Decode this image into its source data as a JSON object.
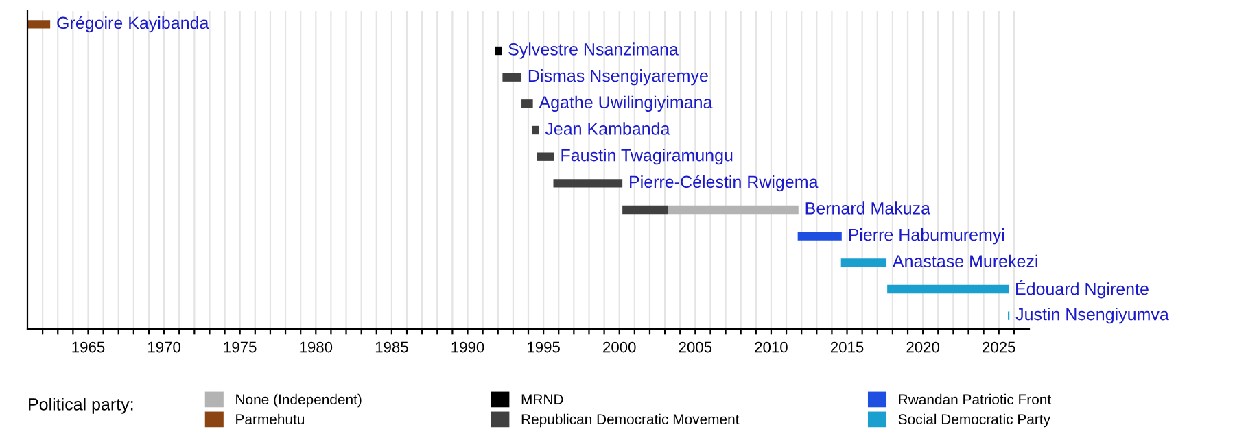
{
  "chart_data": {
    "type": "bar",
    "orientation": "horizontal",
    "legend_title": "Political party:",
    "categories": [
      "Grégoire Kayibanda",
      "Sylvestre Nsanzimana",
      "Dismas Nsengiyaremye",
      "Agathe Uwilingiyimana",
      "Jean Kambanda",
      "Faustin Twagiramungu",
      "Pierre-Célestin Rwigema",
      "Bernard Makuza",
      "Pierre Habumuremyi",
      "Anastase Murekezi",
      "Édouard Ngirente",
      "Justin Nsengiyumva"
    ],
    "series": [
      {
        "name": "None (Independent)",
        "color": "#b3b3b3",
        "values": [
          null,
          null,
          null,
          null,
          null,
          null,
          null,
          8.6,
          null,
          null,
          null,
          null
        ],
        "base": [
          null,
          null,
          null,
          null,
          null,
          null,
          null,
          2003.2,
          null,
          null,
          null,
          null
        ]
      },
      {
        "name": "Parmehutu",
        "color": "#8b4513",
        "values": [
          1.5,
          null,
          null,
          null,
          null,
          null,
          null,
          null,
          null,
          null,
          null,
          null
        ],
        "base": [
          1961.0,
          null,
          null,
          null,
          null,
          null,
          null,
          null,
          null,
          null,
          null,
          null
        ]
      },
      {
        "name": "MRND",
        "color": "#000000",
        "values": [
          null,
          0.45,
          null,
          null,
          null,
          null,
          null,
          null,
          null,
          null,
          null,
          null
        ],
        "base": [
          null,
          1991.8,
          null,
          null,
          null,
          null,
          null,
          null,
          null,
          null,
          null,
          null
        ]
      },
      {
        "name": "Republican Democratic Movement",
        "color": "#404040",
        "values": [
          null,
          null,
          1.25,
          0.75,
          0.45,
          1.15,
          4.55,
          3.0,
          null,
          null,
          null,
          null
        ],
        "base": [
          null,
          null,
          1992.3,
          1993.55,
          1994.25,
          1994.55,
          1995.65,
          2000.2,
          null,
          null,
          null,
          null
        ]
      },
      {
        "name": "Rwandan Patriotic Front",
        "color": "#1e4fe0",
        "values": [
          null,
          null,
          null,
          null,
          null,
          null,
          null,
          null,
          2.9,
          null,
          null,
          null
        ],
        "base": [
          null,
          null,
          null,
          null,
          null,
          null,
          null,
          null,
          2011.75,
          null,
          null,
          null
        ]
      },
      {
        "name": "Social Democratic Party",
        "color": "#1a9fcf",
        "values": [
          null,
          null,
          null,
          null,
          null,
          null,
          null,
          null,
          null,
          3.0,
          8.0,
          0.1
        ],
        "base": [
          null,
          null,
          null,
          null,
          null,
          null,
          null,
          null,
          null,
          2014.6,
          2017.65,
          2025.6
        ]
      }
    ],
    "xlim": [
      1961,
      2027
    ],
    "xticks": [
      {
        "value": 1962,
        "label": null
      },
      {
        "value": 1963,
        "label": null
      },
      {
        "value": 1964,
        "label": null
      },
      1965,
      {
        "value": 1966,
        "label": null
      },
      {
        "value": 1967,
        "label": null
      },
      {
        "value": 1968,
        "label": null
      },
      {
        "value": 1969,
        "label": null
      },
      1970,
      {
        "value": 1971,
        "label": null
      },
      {
        "value": 1972,
        "label": null
      },
      {
        "value": 1973,
        "label": null
      },
      {
        "value": 1974,
        "label": null
      },
      1975,
      {
        "value": 1976,
        "label": null
      },
      {
        "value": 1977,
        "label": null
      },
      {
        "value": 1978,
        "label": null
      },
      {
        "value": 1979,
        "label": null
      },
      1980,
      {
        "value": 1981,
        "label": null
      },
      {
        "value": 1982,
        "label": null
      },
      {
        "value": 1983,
        "label": null
      },
      {
        "value": 1984,
        "label": null
      },
      1985,
      {
        "value": 1986,
        "label": null
      },
      {
        "value": 1987,
        "label": null
      },
      {
        "value": 1988,
        "label": null
      },
      {
        "value": 1989,
        "label": null
      },
      1990,
      {
        "value": 1991,
        "label": null
      },
      {
        "value": 1992,
        "label": null
      },
      {
        "value": 1993,
        "label": null
      },
      {
        "value": 1994,
        "label": null
      },
      1995,
      {
        "value": 1996,
        "label": null
      },
      {
        "value": 1997,
        "label": null
      },
      {
        "value": 1998,
        "label": null
      },
      {
        "value": 1999,
        "label": null
      },
      2000,
      {
        "value": 2001,
        "label": null
      },
      {
        "value": 2002,
        "label": null
      },
      {
        "value": 2003,
        "label": null
      },
      {
        "value": 2004,
        "label": null
      },
      2005,
      {
        "value": 2006,
        "label": null
      },
      {
        "value": 2007,
        "label": null
      },
      {
        "value": 2008,
        "label": null
      },
      {
        "value": 2009,
        "label": null
      },
      2010,
      {
        "value": 2011,
        "label": null
      },
      {
        "value": 2012,
        "label": null
      },
      {
        "value": 2013,
        "label": null
      },
      {
        "value": 2014,
        "label": null
      },
      2015,
      {
        "value": 2016,
        "label": null
      },
      {
        "value": 2017,
        "label": null
      },
      {
        "value": 2018,
        "label": null
      },
      {
        "value": 2019,
        "label": null
      },
      2020,
      {
        "value": 2021,
        "label": null
      },
      {
        "value": 2022,
        "label": null
      },
      {
        "value": 2023,
        "label": null
      },
      {
        "value": 2024,
        "label": null
      },
      2025,
      {
        "value": 2026,
        "label": null
      }
    ],
    "grid": "x",
    "legend": "bottom",
    "tick_labels": "x"
  }
}
